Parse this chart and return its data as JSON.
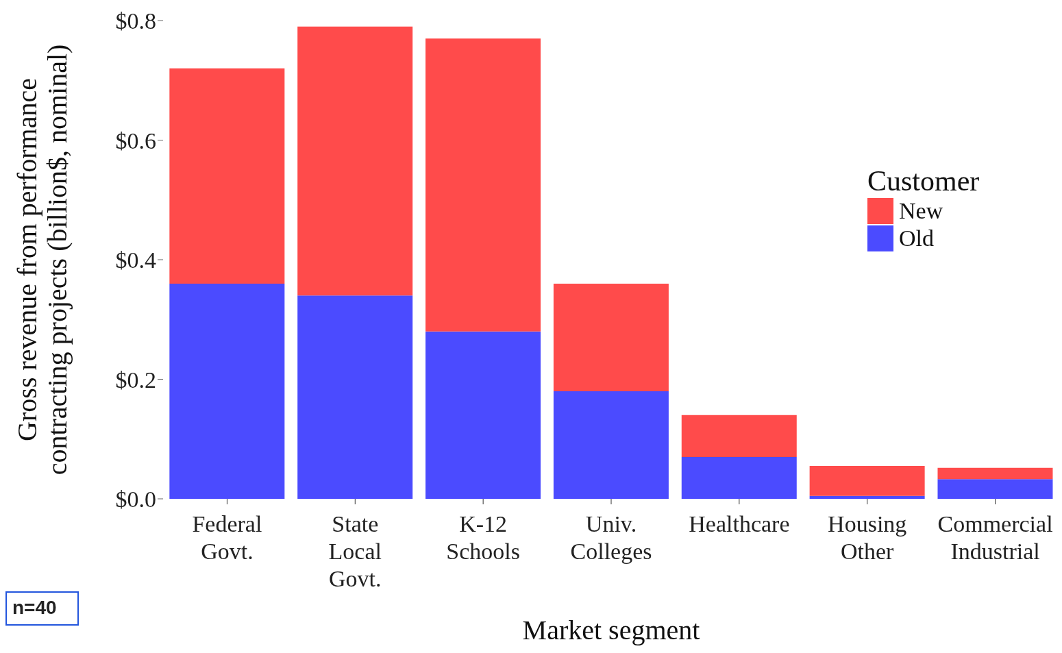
{
  "chart_data": {
    "type": "bar",
    "stacked": true,
    "xlabel": "Market segment",
    "ylabel": "Gross revenue from performance\ncontracting projects (billion$, nominal)",
    "legend_title": "Customer",
    "legend": "top right",
    "grid": false,
    "categories": [
      "Federal Govt.",
      "State Local Govt.",
      "K-12 Schools",
      "Univ. Colleges",
      "Healthcare",
      "Housing Other",
      "Commercial Industrial"
    ],
    "series": [
      {
        "name": "Old",
        "color": "#4b4bff",
        "values": [
          0.36,
          0.34,
          0.28,
          0.18,
          0.07,
          0.005,
          0.033
        ]
      },
      {
        "name": "New",
        "color": "#ff4b4b",
        "values": [
          0.36,
          0.45,
          0.49,
          0.18,
          0.07,
          0.05,
          0.019
        ]
      }
    ],
    "ylim": [
      0,
      0.8
    ],
    "yticks": [
      {
        "value": 0,
        "label": "$0.0"
      },
      {
        "value": 0.2,
        "label": "$0.2"
      },
      {
        "value": 0.4,
        "label": "$0.4"
      },
      {
        "value": 0.6,
        "label": "$0.6"
      },
      {
        "value": 0.8,
        "label": "$0.8"
      }
    ],
    "annotations": [
      "n=40"
    ]
  }
}
